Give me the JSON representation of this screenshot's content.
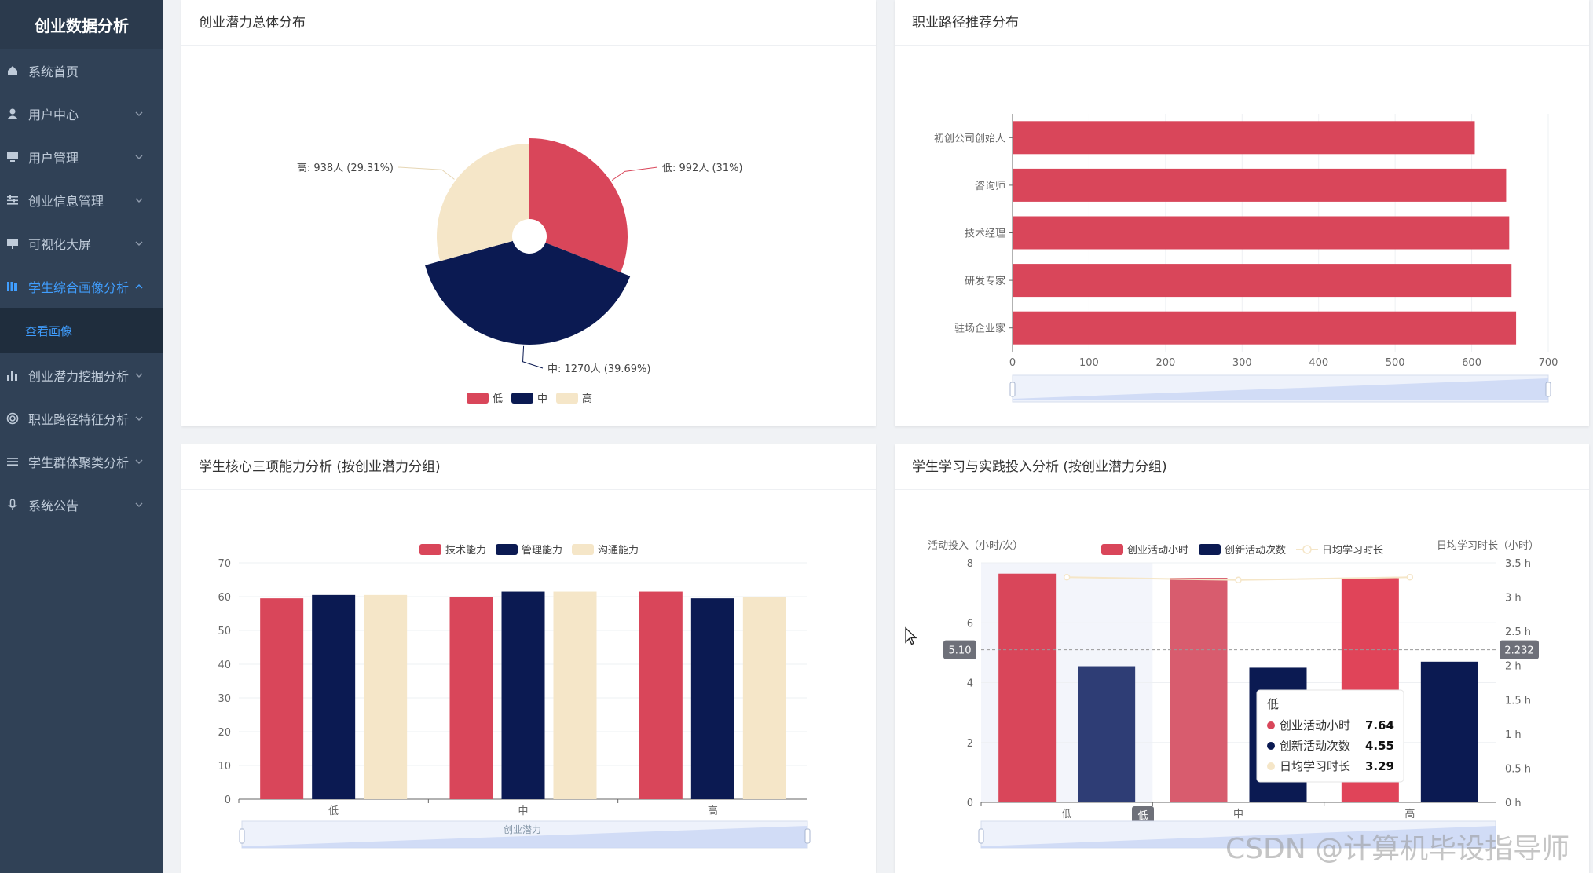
{
  "sidebar": {
    "brand": "创业数据分析",
    "items": [
      {
        "label": "系统首页",
        "icon": "home-icon",
        "has_children": false
      },
      {
        "label": "用户中心",
        "icon": "user-icon",
        "has_children": true
      },
      {
        "label": "用户管理",
        "icon": "monitor-icon",
        "has_children": true
      },
      {
        "label": "创业信息管理",
        "icon": "sliders-icon",
        "has_children": true
      },
      {
        "label": "可视化大屏",
        "icon": "screen-icon",
        "has_children": true
      },
      {
        "label": "学生综合画像分析",
        "icon": "library-icon",
        "has_children": true,
        "active": true
      },
      {
        "label": "创业潜力挖掘分析",
        "icon": "bar-chart-icon",
        "has_children": true
      },
      {
        "label": "职业路径特征分析",
        "icon": "circle-icon",
        "has_children": true
      },
      {
        "label": "学生群体聚类分析",
        "icon": "list-icon",
        "has_children": true
      },
      {
        "label": "系统公告",
        "icon": "mic-icon",
        "has_children": true
      }
    ],
    "subitem": "查看画像"
  },
  "cards": {
    "pie_title": "创业潜力总体分布",
    "hbar_title": "职业路径推荐分布",
    "ability_title": "学生核心三项能力分析 (按创业潜力分组)",
    "invest_title": "学生学习与实践投入分析 (按创业潜力分组)"
  },
  "colors": {
    "red": "#d9465a",
    "navy": "#0b1a52",
    "beige": "#f5e6c8",
    "accent": "#409eff"
  },
  "chart_data": [
    {
      "type": "pie",
      "title": "创业潜力总体分布",
      "slices": [
        {
          "name": "低",
          "value": 992,
          "label": "低: 992人 (31%)"
        },
        {
          "name": "中",
          "value": 1270,
          "label": "中: 1270人 (39.69%)"
        },
        {
          "name": "高",
          "value": 938,
          "label": "高: 938人 (29.31%)"
        }
      ],
      "legend": [
        "低",
        "中",
        "高"
      ],
      "legend_position": "bottom"
    },
    {
      "type": "bar",
      "orientation": "horizontal",
      "title": "职业路径推荐分布",
      "categories": [
        "驻场企业家",
        "研发专家",
        "技术经理",
        "咨询师",
        "初创公司创始人"
      ],
      "values": [
        658,
        652,
        649,
        645,
        604
      ],
      "xlim": [
        0,
        700
      ],
      "xticks": [
        "0",
        "100",
        "200",
        "300",
        "400",
        "500",
        "600",
        "700"
      ]
    },
    {
      "type": "bar",
      "title": "学生核心三项能力分析 (按创业潜力分组)",
      "categories": [
        "低",
        "中",
        "高"
      ],
      "series": [
        {
          "name": "技术能力",
          "values": [
            59.5,
            60,
            61.5
          ]
        },
        {
          "name": "管理能力",
          "values": [
            60.5,
            61.5,
            59.5
          ]
        },
        {
          "name": "沟通能力",
          "values": [
            60.5,
            61.5,
            60
          ]
        }
      ],
      "ylim": [
        0,
        70
      ],
      "yticks": [
        "0",
        "10",
        "20",
        "30",
        "40",
        "50",
        "60",
        "70"
      ],
      "xlabel": "创业潜力",
      "legend_position": "top"
    },
    {
      "type": "bar",
      "title": "学生学习与实践投入分析 (按创业潜力分组)",
      "categories": [
        "低",
        "中",
        "高"
      ],
      "series": [
        {
          "name": "创业活动小时",
          "values": [
            7.64,
            7.5,
            7.5
          ]
        },
        {
          "name": "创新活动次数",
          "values": [
            4.55,
            4.5,
            4.7
          ]
        },
        {
          "name": "日均学习时长",
          "values": [
            3.29,
            3.25,
            3.29
          ]
        }
      ],
      "ylabel_left": "活动投入（小时/次）",
      "ylabel_right": "日均学习时长（小时）",
      "ylim_left": [
        0,
        8
      ],
      "yticks_left": [
        "0",
        "2",
        "4",
        "6",
        "8"
      ],
      "ylim_right": [
        0,
        3.5
      ],
      "yticks_right": [
        "0 h",
        "0.5 h",
        "1 h",
        "1.5 h",
        "2 h",
        "2.5 h",
        "3 h",
        "3.5 h"
      ],
      "crosshair": {
        "left_value": "5.10",
        "right_value": "2.232",
        "x_label": "低"
      },
      "tooltip": {
        "title": "低",
        "rows": [
          {
            "name": "创业活动小时",
            "value": "7.64"
          },
          {
            "name": "创新活动次数",
            "value": "4.55"
          },
          {
            "name": "日均学习时长",
            "value": "3.29"
          }
        ]
      },
      "legend_position": "top"
    }
  ],
  "watermark": "CSDN @计算机毕设指导师"
}
